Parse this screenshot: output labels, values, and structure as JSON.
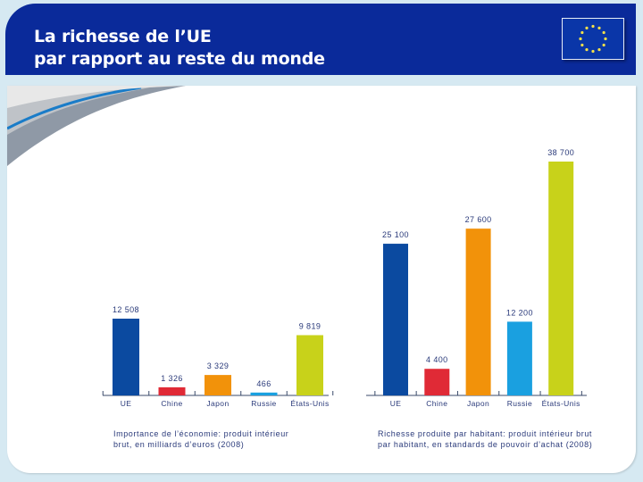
{
  "header": {
    "title_line1": "La richesse de l’UE",
    "title_line2": "par rapport au reste du monde",
    "flag_icon": "eu-flag-icon"
  },
  "colors": {
    "header_bg": "#0a2a9a",
    "UE": "#0b4aa0",
    "Chine": "#e02a36",
    "Japon": "#f2920a",
    "Russie": "#1aa0e0",
    "Etats-Unis": "#c8d21a",
    "label_text": "#2a3a7a"
  },
  "chart_data": [
    {
      "type": "bar",
      "title": "Importance de l’économie: produit intérieur brut, en milliards d’euros (2008)",
      "caption_line1": "Importance de l’économie: produit intérieur",
      "caption_line2": "brut, en milliards d’euros (2008)",
      "categories": [
        "UE",
        "Chine",
        "Japon",
        "Russie",
        "États-Unis"
      ],
      "values": [
        12508,
        1326,
        3329,
        466,
        9819
      ],
      "value_labels": [
        "12 508",
        "1 326",
        "3 329",
        "466",
        "9 819"
      ],
      "xlabel": "",
      "ylabel": "",
      "ylim": [
        0,
        14000
      ],
      "grid": false
    },
    {
      "type": "bar",
      "title": "Richesse produite par habitant: produit intérieur brut par habitant, en standards de pouvoir d’achat (2008)",
      "caption_line1": "Richesse produite par habitant: produit intérieur brut",
      "caption_line2": "par habitant, en standards de pouvoir d’achat (2008)",
      "categories": [
        "UE",
        "Chine",
        "Japon",
        "Russie",
        "États-Unis"
      ],
      "values": [
        25100,
        4400,
        27600,
        12200,
        38700
      ],
      "value_labels": [
        "25 100",
        "4 400",
        "27 600",
        "12 200",
        "38 700"
      ],
      "xlabel": "",
      "ylabel": "",
      "ylim": [
        0,
        40000
      ],
      "grid": false
    }
  ]
}
